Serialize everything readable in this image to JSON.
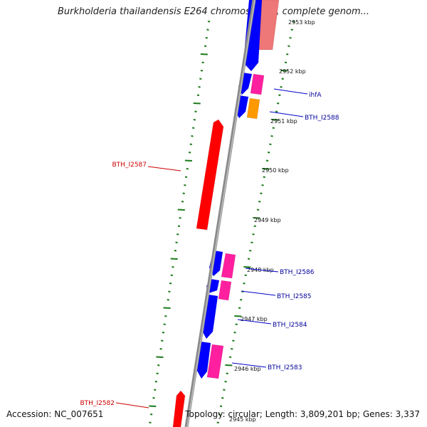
{
  "title": "Burkholderia thailandensis E264 chromosome I, complete genom...",
  "footer": {
    "accession": "Accession: NC_007651",
    "summary": "Topology: circular; Length: 3,809,201 bp; Genes: 3,337"
  },
  "colors": {
    "backbone": "#8a8a8a",
    "tick_dots": "#1a7a1a",
    "reverse_gene": "#ff0000",
    "forward_gene": "#0000ff",
    "rna_gene": "#ff1f9f",
    "orange_gene": "#ff9900",
    "label_forward": "#000099",
    "label_reverse": "#cc0000"
  },
  "ticks": [
    {
      "label": "2953 kbp"
    },
    {
      "label": "2952 kbp"
    },
    {
      "label": "2951 kbp"
    },
    {
      "label": "2950 kbp"
    },
    {
      "label": "2949 kbp"
    },
    {
      "label": "2948 kbp"
    },
    {
      "label": "2947 kbp"
    },
    {
      "label": "2946 kbp"
    },
    {
      "label": "2945 kbp"
    }
  ],
  "gene_labels": [
    {
      "name": "ihfA",
      "strand": "forward"
    },
    {
      "name": "BTH_I2588",
      "strand": "forward"
    },
    {
      "name": "BTH_I2587",
      "strand": "reverse"
    },
    {
      "name": "BTH_I2586",
      "strand": "forward"
    },
    {
      "name": "BTH_I2585",
      "strand": "forward"
    },
    {
      "name": "BTH_I2584",
      "strand": "forward"
    },
    {
      "name": "BTH_I2583",
      "strand": "forward"
    },
    {
      "name": "BTH_I2582",
      "strand": "reverse"
    }
  ]
}
